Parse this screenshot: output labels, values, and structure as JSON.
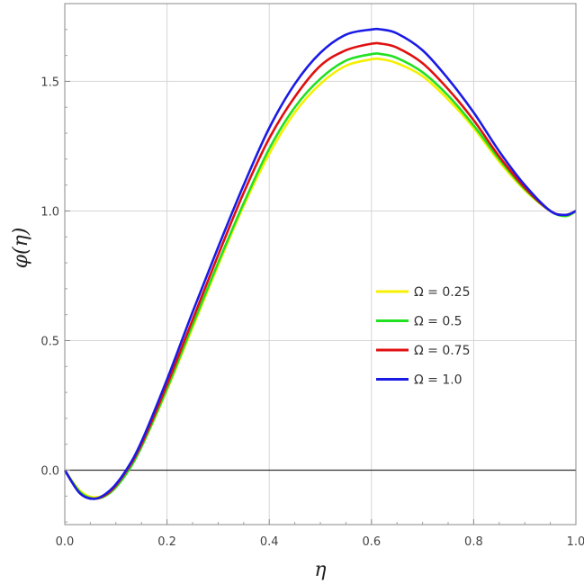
{
  "chart_data": {
    "type": "line",
    "title": "",
    "xlabel": "η",
    "ylabel": "φ(η)",
    "xlim": [
      0.0,
      1.0
    ],
    "ylim": [
      -0.21,
      1.8
    ],
    "xticks": [
      "0.0",
      "0.2",
      "0.4",
      "0.6",
      "0.8",
      "1.0"
    ],
    "yticks": [
      "0.0",
      "0.5",
      "1.0",
      "1.5"
    ],
    "grid": true,
    "legend_position": "center-right",
    "x": [
      0.0,
      0.03,
      0.06,
      0.09,
      0.12,
      0.15,
      0.2,
      0.25,
      0.3,
      0.35,
      0.4,
      0.45,
      0.5,
      0.55,
      0.6,
      0.62,
      0.65,
      0.7,
      0.75,
      0.8,
      0.85,
      0.9,
      0.95,
      0.98,
      1.0
    ],
    "series": [
      {
        "name": "Ω = 0.25",
        "color": "#f4f000",
        "values": [
          0.0,
          -0.08,
          -0.105,
          -0.08,
          -0.01,
          0.09,
          0.31,
          0.55,
          0.79,
          1.02,
          1.22,
          1.38,
          1.49,
          1.56,
          1.585,
          1.585,
          1.57,
          1.52,
          1.43,
          1.32,
          1.19,
          1.08,
          1.0,
          0.98,
          1.0
        ]
      },
      {
        "name": "Ω = 0.5",
        "color": "#22e022",
        "values": [
          0.0,
          -0.085,
          -0.11,
          -0.085,
          -0.015,
          0.09,
          0.315,
          0.56,
          0.8,
          1.03,
          1.24,
          1.4,
          1.51,
          1.58,
          1.605,
          1.605,
          1.59,
          1.535,
          1.445,
          1.33,
          1.2,
          1.085,
          1.0,
          0.98,
          1.0
        ]
      },
      {
        "name": "Ω = 0.75",
        "color": "#e01010",
        "values": [
          0.0,
          -0.09,
          -0.11,
          -0.08,
          -0.005,
          0.1,
          0.33,
          0.58,
          0.83,
          1.07,
          1.28,
          1.44,
          1.56,
          1.62,
          1.645,
          1.645,
          1.63,
          1.57,
          1.47,
          1.35,
          1.21,
          1.09,
          1.0,
          0.985,
          1.0
        ]
      },
      {
        "name": "Ω = 1.0",
        "color": "#1a1ae6",
        "values": [
          0.0,
          -0.09,
          -0.11,
          -0.075,
          0.0,
          0.11,
          0.35,
          0.61,
          0.86,
          1.1,
          1.32,
          1.49,
          1.61,
          1.68,
          1.7,
          1.7,
          1.685,
          1.62,
          1.51,
          1.38,
          1.23,
          1.1,
          1.0,
          0.985,
          1.0
        ]
      }
    ]
  }
}
